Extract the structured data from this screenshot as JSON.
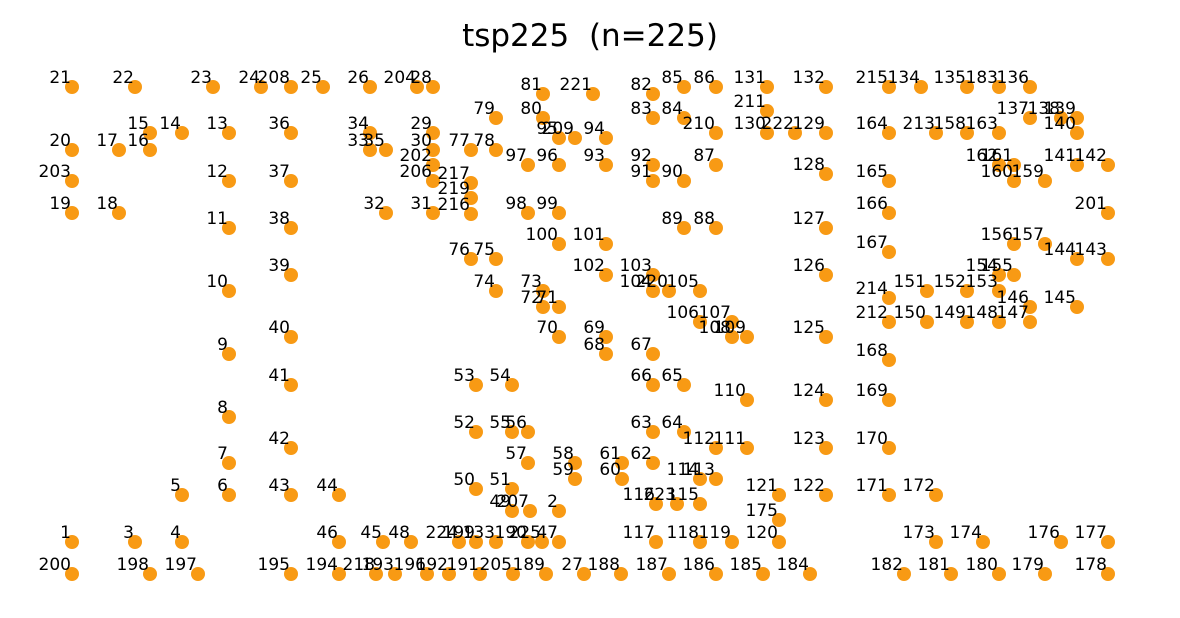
{
  "chart_data": {
    "type": "scatter",
    "title": "tsp225  (n=225)",
    "color": "#f89a14",
    "xlim": [
      0,
      1180
    ],
    "ylim": [
      0,
      540
    ],
    "labels": [
      "1",
      "2",
      "3",
      "4",
      "5",
      "6",
      "7",
      "8",
      "9",
      "10",
      "11",
      "12",
      "13",
      "14",
      "15",
      "16",
      "17",
      "18",
      "19",
      "20",
      "21",
      "22",
      "23",
      "24",
      "25",
      "26",
      "27",
      "28",
      "29",
      "30",
      "31",
      "32",
      "33",
      "34",
      "35",
      "36",
      "37",
      "38",
      "39",
      "40",
      "41",
      "42",
      "43",
      "44",
      "45",
      "46",
      "47",
      "48",
      "49",
      "50",
      "51",
      "52",
      "53",
      "54",
      "55",
      "56",
      "57",
      "58",
      "59",
      "60",
      "61",
      "62",
      "63",
      "64",
      "65",
      "66",
      "67",
      "68",
      "69",
      "70",
      "71",
      "72",
      "73",
      "74",
      "75",
      "76",
      "77",
      "78",
      "79",
      "80",
      "81",
      "82",
      "83",
      "84",
      "85",
      "86",
      "87",
      "88",
      "89",
      "90",
      "91",
      "92",
      "93",
      "94",
      "95",
      "96",
      "97",
      "98",
      "99",
      "100",
      "101",
      "102",
      "103",
      "104",
      "105",
      "106",
      "107",
      "108",
      "109",
      "110",
      "111",
      "112",
      "113",
      "114",
      "115",
      "116",
      "117",
      "118",
      "119",
      "120",
      "121",
      "122",
      "123",
      "124",
      "125",
      "126",
      "127",
      "128",
      "129",
      "130",
      "131",
      "132",
      "133",
      "134",
      "135",
      "136",
      "137",
      "138",
      "139",
      "140",
      "141",
      "142",
      "143",
      "144",
      "145",
      "146",
      "147",
      "148",
      "149",
      "150",
      "151",
      "152",
      "153",
      "154",
      "155",
      "156",
      "157",
      "158",
      "159",
      "160",
      "161",
      "162",
      "163",
      "164",
      "165",
      "166",
      "167",
      "168",
      "169",
      "170",
      "171",
      "172",
      "173",
      "174",
      "175",
      "176",
      "177",
      "178",
      "179",
      "180",
      "181",
      "182",
      "183",
      "184",
      "185",
      "186",
      "187",
      "188",
      "189",
      "190",
      "191",
      "192",
      "193",
      "194",
      "195",
      "196",
      "197",
      "198",
      "199",
      "200",
      "201",
      "202",
      "203",
      "204",
      "205",
      "206",
      "207",
      "208",
      "209",
      "210",
      "211",
      "212",
      "213",
      "214",
      "215",
      "216",
      "217",
      "218",
      "219",
      "220",
      "221",
      "222",
      "223",
      "224",
      "225"
    ],
    "x": [
      72,
      559,
      135,
      182,
      182,
      229,
      229,
      229,
      229,
      229,
      229,
      229,
      229,
      182,
      150,
      150,
      119,
      119,
      72,
      72,
      72,
      135,
      213,
      261,
      323,
      370,
      584,
      433,
      433,
      433,
      433,
      386,
      370,
      370,
      386,
      291,
      291,
      291,
      291,
      291,
      291,
      291,
      291,
      339,
      383,
      339,
      559,
      411,
      512,
      476,
      512,
      476,
      476,
      512,
      512,
      528,
      528,
      575,
      575,
      622,
      622,
      653,
      653,
      684,
      684,
      653,
      653,
      606,
      606,
      559,
      559,
      543,
      543,
      496,
      496,
      471,
      471,
      496,
      496,
      543,
      543,
      653,
      653,
      684,
      684,
      716,
      716,
      716,
      684,
      684,
      653,
      653,
      606,
      606,
      559,
      559,
      528,
      528,
      559,
      559,
      606,
      606,
      653,
      653,
      700,
      700,
      732,
      732,
      747,
      747,
      747,
      716,
      716,
      700,
      700,
      656,
      656,
      700,
      732,
      779,
      779,
      826,
      826,
      826,
      826,
      826,
      826,
      826,
      826,
      767,
      767,
      826,
      496,
      921,
      967,
      1030,
      1030,
      1061,
      1077,
      1077,
      1077,
      1108,
      1108,
      1077,
      1077,
      1030,
      1030,
      999,
      967,
      927,
      927,
      967,
      999,
      999,
      1014,
      1014,
      1045,
      967,
      1045,
      1014,
      1014,
      999,
      999,
      889,
      889,
      889,
      889,
      889,
      889,
      889,
      889,
      936,
      936,
      983,
      779,
      1061,
      1108,
      1108,
      1045,
      999,
      951,
      904,
      999,
      810,
      763,
      716,
      669,
      621,
      546,
      528,
      480,
      449,
      395,
      339,
      291,
      427,
      198,
      150,
      476,
      72,
      1108,
      433,
      72,
      417,
      513,
      433,
      530,
      291,
      575,
      716,
      767,
      889,
      936,
      889,
      889,
      471,
      471,
      376,
      471,
      669,
      593,
      795,
      677,
      459,
      542
    ],
    "y": [
      58,
      89,
      58,
      58,
      105,
      105,
      137,
      183,
      246,
      309,
      372,
      419,
      467,
      467,
      467,
      450,
      450,
      387,
      387,
      450,
      513,
      513,
      513,
      513,
      513,
      513,
      26,
      513,
      467,
      450,
      387,
      387,
      450,
      467,
      450,
      467,
      419,
      372,
      325,
      263,
      215,
      152,
      105,
      105,
      58,
      58,
      58,
      58,
      89,
      111,
      111,
      168,
      215,
      215,
      168,
      168,
      137,
      137,
      121,
      121,
      137,
      137,
      168,
      168,
      215,
      215,
      246,
      246,
      263,
      263,
      293,
      293,
      309,
      309,
      341,
      341,
      450,
      450,
      482,
      482,
      506,
      506,
      482,
      482,
      513,
      513,
      435,
      372,
      372,
      419,
      419,
      435,
      435,
      462,
      462,
      435,
      435,
      387,
      387,
      356,
      356,
      325,
      325,
      309,
      309,
      278,
      278,
      263,
      263,
      200,
      152,
      152,
      121,
      121,
      96,
      96,
      58,
      58,
      58,
      58,
      105,
      105,
      152,
      200,
      263,
      325,
      372,
      426,
      467,
      467,
      513,
      513,
      58,
      513,
      513,
      513,
      482,
      482,
      482,
      467,
      435,
      435,
      341,
      341,
      293,
      293,
      278,
      278,
      278,
      278,
      309,
      309,
      309,
      325,
      325,
      356,
      356,
      467,
      419,
      419,
      435,
      435,
      467,
      467,
      419,
      387,
      348,
      240,
      200,
      152,
      105,
      105,
      58,
      58,
      80,
      58,
      58,
      26,
      26,
      26,
      26,
      26,
      513,
      26,
      26,
      26,
      26,
      26,
      26,
      58,
      26,
      26,
      26,
      26,
      26,
      26,
      26,
      26,
      58,
      26,
      387,
      435,
      419,
      513,
      26,
      419,
      89,
      513,
      462,
      467,
      489,
      278,
      467,
      302,
      513,
      386,
      417,
      26,
      402,
      309,
      506,
      467,
      96,
      58,
      58
    ]
  }
}
